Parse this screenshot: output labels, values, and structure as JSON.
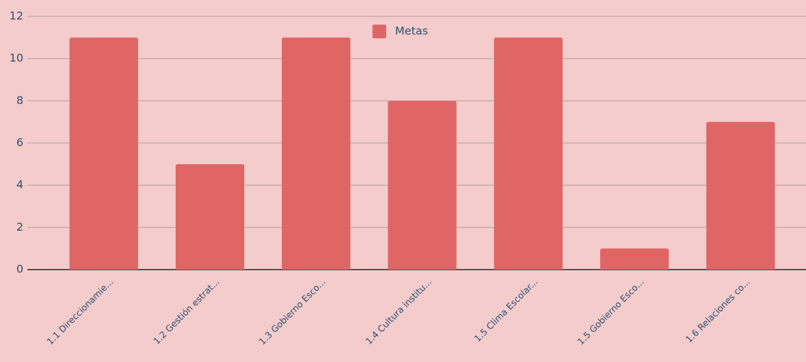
{
  "chart_data": {
    "type": "bar",
    "categories": [
      "1.1 Direccionamie...",
      "1.2 Gestión estrat...",
      "1.3 Gobierno Esco...",
      "1.4 Cultura institu...",
      "1.5 Clima Escolar...",
      "1.5 Gobierno Esco...",
      "1.6 Relaciones co..."
    ],
    "series": [
      {
        "name": "Metas",
        "color": "#e06666",
        "values": [
          11,
          5,
          11,
          8,
          11,
          1,
          7
        ]
      }
    ],
    "ylim": [
      0,
      12
    ],
    "yticks": [
      0,
      2,
      4,
      6,
      8,
      10,
      12
    ],
    "grid": true,
    "legend": "top"
  }
}
